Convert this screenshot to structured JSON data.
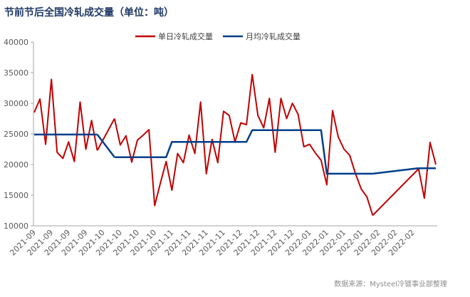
{
  "chart_data": {
    "type": "line",
    "title": "节前节后全国冷轧成交量（单位：吨）",
    "source": "数据来源：Mysteel冷镀事业部整理",
    "categories": [
      "2021-09",
      null,
      null,
      "2021-09",
      null,
      null,
      "2021-09",
      null,
      null,
      "2021-09",
      null,
      null,
      "2021-10",
      null,
      null,
      "2021-10",
      null,
      null,
      "2021-10",
      null,
      null,
      "2021-10",
      null,
      null,
      "2021-11",
      null,
      null,
      "2021-11",
      null,
      null,
      "2021-11",
      null,
      null,
      "2021-11",
      null,
      null,
      "2021-12",
      null,
      null,
      "2021-12",
      null,
      null,
      "2021-12",
      null,
      null,
      "2021-12",
      null,
      null,
      "2022-01",
      null,
      null,
      "2022-01",
      null,
      null,
      "2022-01",
      null,
      null,
      "2022-01",
      null,
      null,
      "2022-02",
      null,
      null,
      "2022-02",
      null,
      null,
      "2022-02",
      null,
      null,
      null,
      null
    ],
    "series": [
      {
        "name": "单日冷轧成交量",
        "color": "#c00000",
        "values": [
          28500,
          30700,
          23300,
          33900,
          22000,
          21000,
          23700,
          20500,
          30200,
          22500,
          27200,
          22300,
          null,
          null,
          27500,
          23200,
          24700,
          20400,
          24000,
          24800,
          25700,
          13300,
          17000,
          20500,
          15800,
          21800,
          20300,
          24800,
          21800,
          30200,
          18500,
          24100,
          20300,
          28700,
          28000,
          23700,
          26800,
          26500,
          34700,
          28000,
          26000,
          30800,
          22000,
          30800,
          27500,
          30000,
          28200,
          22900,
          23300,
          21900,
          20700,
          16700,
          28800,
          24500,
          22500,
          21500,
          18500,
          16000,
          14700,
          11700,
          null,
          null,
          null,
          null,
          null,
          null,
          null,
          19300,
          14500,
          23600,
          20000
        ]
      },
      {
        "name": "月均冷轧成交量",
        "color": "#003f8a",
        "values": [
          24900,
          24900,
          24900,
          24900,
          24900,
          24900,
          24900,
          24900,
          24900,
          24900,
          24900,
          24900,
          null,
          null,
          21200,
          21200,
          21200,
          21200,
          21200,
          21200,
          21200,
          21200,
          21200,
          21200,
          23700,
          23700,
          23700,
          23700,
          23700,
          23700,
          23700,
          23700,
          23700,
          23700,
          23700,
          23700,
          23700,
          23700,
          25600,
          25600,
          25600,
          25600,
          25600,
          25600,
          25600,
          25600,
          25600,
          25600,
          25600,
          25600,
          25600,
          18500,
          18500,
          18500,
          18500,
          18500,
          18500,
          18500,
          18500,
          18500,
          null,
          null,
          null,
          null,
          null,
          null,
          null,
          19400,
          19400,
          19400,
          19400
        ]
      }
    ],
    "ylim": [
      10000,
      40000
    ],
    "yticks": [
      10000,
      15000,
      20000,
      25000,
      30000,
      35000,
      40000
    ],
    "grid": false
  }
}
